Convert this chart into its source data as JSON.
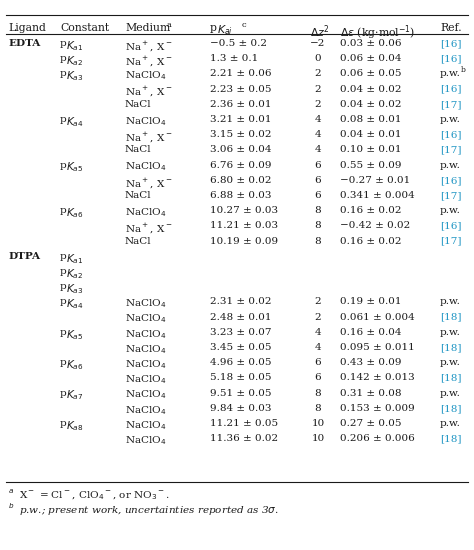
{
  "cyan_color": "#2196c4",
  "black_color": "#1a1a1a",
  "font_size": 7.5,
  "header_font_size": 7.8,
  "bg_color": "#ffffff",
  "rows": [
    {
      "ligand": "EDTA",
      "constant": "pK_a1",
      "medium": "Na$^+$, X$^-$",
      "pka": "−0.5 ± 0.2",
      "dz2": "−2",
      "de": "0.03 ± 0.06",
      "ref": "[16]",
      "ref_cyan": true,
      "ref_super": false
    },
    {
      "ligand": "",
      "constant": "pK_a2",
      "medium": "Na$^+$, X$^-$",
      "pka": "1.3 ± 0.1",
      "dz2": "0",
      "de": "0.06 ± 0.04",
      "ref": "[16]",
      "ref_cyan": true,
      "ref_super": false
    },
    {
      "ligand": "",
      "constant": "pK_a3",
      "medium": "NaClO$_4$",
      "pka": "2.21 ± 0.06",
      "dz2": "2",
      "de": "0.06 ± 0.05",
      "ref": "p.w.",
      "ref_cyan": false,
      "ref_super": true
    },
    {
      "ligand": "",
      "constant": "",
      "medium": "Na$^+$, X$^-$",
      "pka": "2.23 ± 0.05",
      "dz2": "2",
      "de": "0.04 ± 0.02",
      "ref": "[16]",
      "ref_cyan": true,
      "ref_super": false
    },
    {
      "ligand": "",
      "constant": "",
      "medium": "NaCl",
      "pka": "2.36 ± 0.01",
      "dz2": "2",
      "de": "0.04 ± 0.02",
      "ref": "[17]",
      "ref_cyan": true,
      "ref_super": false
    },
    {
      "ligand": "",
      "constant": "pK_a4",
      "medium": "NaClO$_4$",
      "pka": "3.21 ± 0.01",
      "dz2": "4",
      "de": "0.08 ± 0.01",
      "ref": "p.w.",
      "ref_cyan": false,
      "ref_super": false
    },
    {
      "ligand": "",
      "constant": "",
      "medium": "Na$^+$, X$^-$",
      "pka": "3.15 ± 0.02",
      "dz2": "4",
      "de": "0.04 ± 0.01",
      "ref": "[16]",
      "ref_cyan": true,
      "ref_super": false
    },
    {
      "ligand": "",
      "constant": "",
      "medium": "NaCl",
      "pka": "3.06 ± 0.04",
      "dz2": "4",
      "de": "0.10 ± 0.01",
      "ref": "[17]",
      "ref_cyan": true,
      "ref_super": false
    },
    {
      "ligand": "",
      "constant": "pK_a5",
      "medium": "NaClO$_4$",
      "pka": "6.76 ± 0.09",
      "dz2": "6",
      "de": "0.55 ± 0.09",
      "ref": "p.w.",
      "ref_cyan": false,
      "ref_super": false
    },
    {
      "ligand": "",
      "constant": "",
      "medium": "Na$^+$, X$^-$",
      "pka": "6.80 ± 0.02",
      "dz2": "6",
      "de": "−0.27 ± 0.01",
      "ref": "[16]",
      "ref_cyan": true,
      "ref_super": false
    },
    {
      "ligand": "",
      "constant": "",
      "medium": "NaCl",
      "pka": "6.88 ± 0.03",
      "dz2": "6",
      "de": "0.341 ± 0.004",
      "ref": "[17]",
      "ref_cyan": true,
      "ref_super": false
    },
    {
      "ligand": "",
      "constant": "pK_a6",
      "medium": "NaClO$_4$",
      "pka": "10.27 ± 0.03",
      "dz2": "8",
      "de": "0.16 ± 0.02",
      "ref": "p.w.",
      "ref_cyan": false,
      "ref_super": false
    },
    {
      "ligand": "",
      "constant": "",
      "medium": "Na$^+$, X$^-$",
      "pka": "11.21 ± 0.03",
      "dz2": "8",
      "de": "−0.42 ± 0.02",
      "ref": "[16]",
      "ref_cyan": true,
      "ref_super": false
    },
    {
      "ligand": "",
      "constant": "",
      "medium": "NaCl",
      "pka": "10.19 ± 0.09",
      "dz2": "8",
      "de": "0.16 ± 0.02",
      "ref": "[17]",
      "ref_cyan": true,
      "ref_super": false
    },
    {
      "ligand": "DTPA",
      "constant": "pK_a1",
      "medium": "",
      "pka": "",
      "dz2": "",
      "de": "",
      "ref": "",
      "ref_cyan": false,
      "ref_super": false
    },
    {
      "ligand": "",
      "constant": "pK_a2",
      "medium": "",
      "pka": "",
      "dz2": "",
      "de": "",
      "ref": "",
      "ref_cyan": false,
      "ref_super": false
    },
    {
      "ligand": "",
      "constant": "pK_a3",
      "medium": "",
      "pka": "",
      "dz2": "",
      "de": "",
      "ref": "",
      "ref_cyan": false,
      "ref_super": false
    },
    {
      "ligand": "",
      "constant": "pK_a4",
      "medium": "NaClO$_4$",
      "pka": "2.31 ± 0.02",
      "dz2": "2",
      "de": "0.19 ± 0.01",
      "ref": "p.w.",
      "ref_cyan": false,
      "ref_super": false
    },
    {
      "ligand": "",
      "constant": "",
      "medium": "NaClO$_4$",
      "pka": "2.48 ± 0.01",
      "dz2": "2",
      "de": "0.061 ± 0.004",
      "ref": "[18]",
      "ref_cyan": true,
      "ref_super": false
    },
    {
      "ligand": "",
      "constant": "pK_a5",
      "medium": "NaClO$_4$",
      "pka": "3.23 ± 0.07",
      "dz2": "4",
      "de": "0.16 ± 0.04",
      "ref": "p.w.",
      "ref_cyan": false,
      "ref_super": false
    },
    {
      "ligand": "",
      "constant": "",
      "medium": "NaClO$_4$",
      "pka": "3.45 ± 0.05",
      "dz2": "4",
      "de": "0.095 ± 0.011",
      "ref": "[18]",
      "ref_cyan": true,
      "ref_super": false
    },
    {
      "ligand": "",
      "constant": "pK_a6",
      "medium": "NaClO$_4$",
      "pka": "4.96 ± 0.05",
      "dz2": "6",
      "de": "0.43 ± 0.09",
      "ref": "p.w.",
      "ref_cyan": false,
      "ref_super": false
    },
    {
      "ligand": "",
      "constant": "",
      "medium": "NaClO$_4$",
      "pka": "5.18 ± 0.05",
      "dz2": "6",
      "de": "0.142 ± 0.013",
      "ref": "[18]",
      "ref_cyan": true,
      "ref_super": false
    },
    {
      "ligand": "",
      "constant": "pK_a7",
      "medium": "NaClO$_4$",
      "pka": "9.51 ± 0.05",
      "dz2": "8",
      "de": "0.31 ± 0.08",
      "ref": "p.w.",
      "ref_cyan": false,
      "ref_super": false
    },
    {
      "ligand": "",
      "constant": "",
      "medium": "NaClO$_4$",
      "pka": "9.84 ± 0.03",
      "dz2": "8",
      "de": "0.153 ± 0.009",
      "ref": "[18]",
      "ref_cyan": true,
      "ref_super": false
    },
    {
      "ligand": "",
      "constant": "pK_a8",
      "medium": "NaClO$_4$",
      "pka": "11.21 ± 0.05",
      "dz2": "10",
      "de": "0.27 ± 0.05",
      "ref": "p.w.",
      "ref_cyan": false,
      "ref_super": false
    },
    {
      "ligand": "",
      "constant": "",
      "medium": "NaClO$_4$",
      "pka": "11.36 ± 0.02",
      "dz2": "10",
      "de": "0.206 ± 0.006",
      "ref": "[18]",
      "ref_cyan": true,
      "ref_super": false
    }
  ]
}
